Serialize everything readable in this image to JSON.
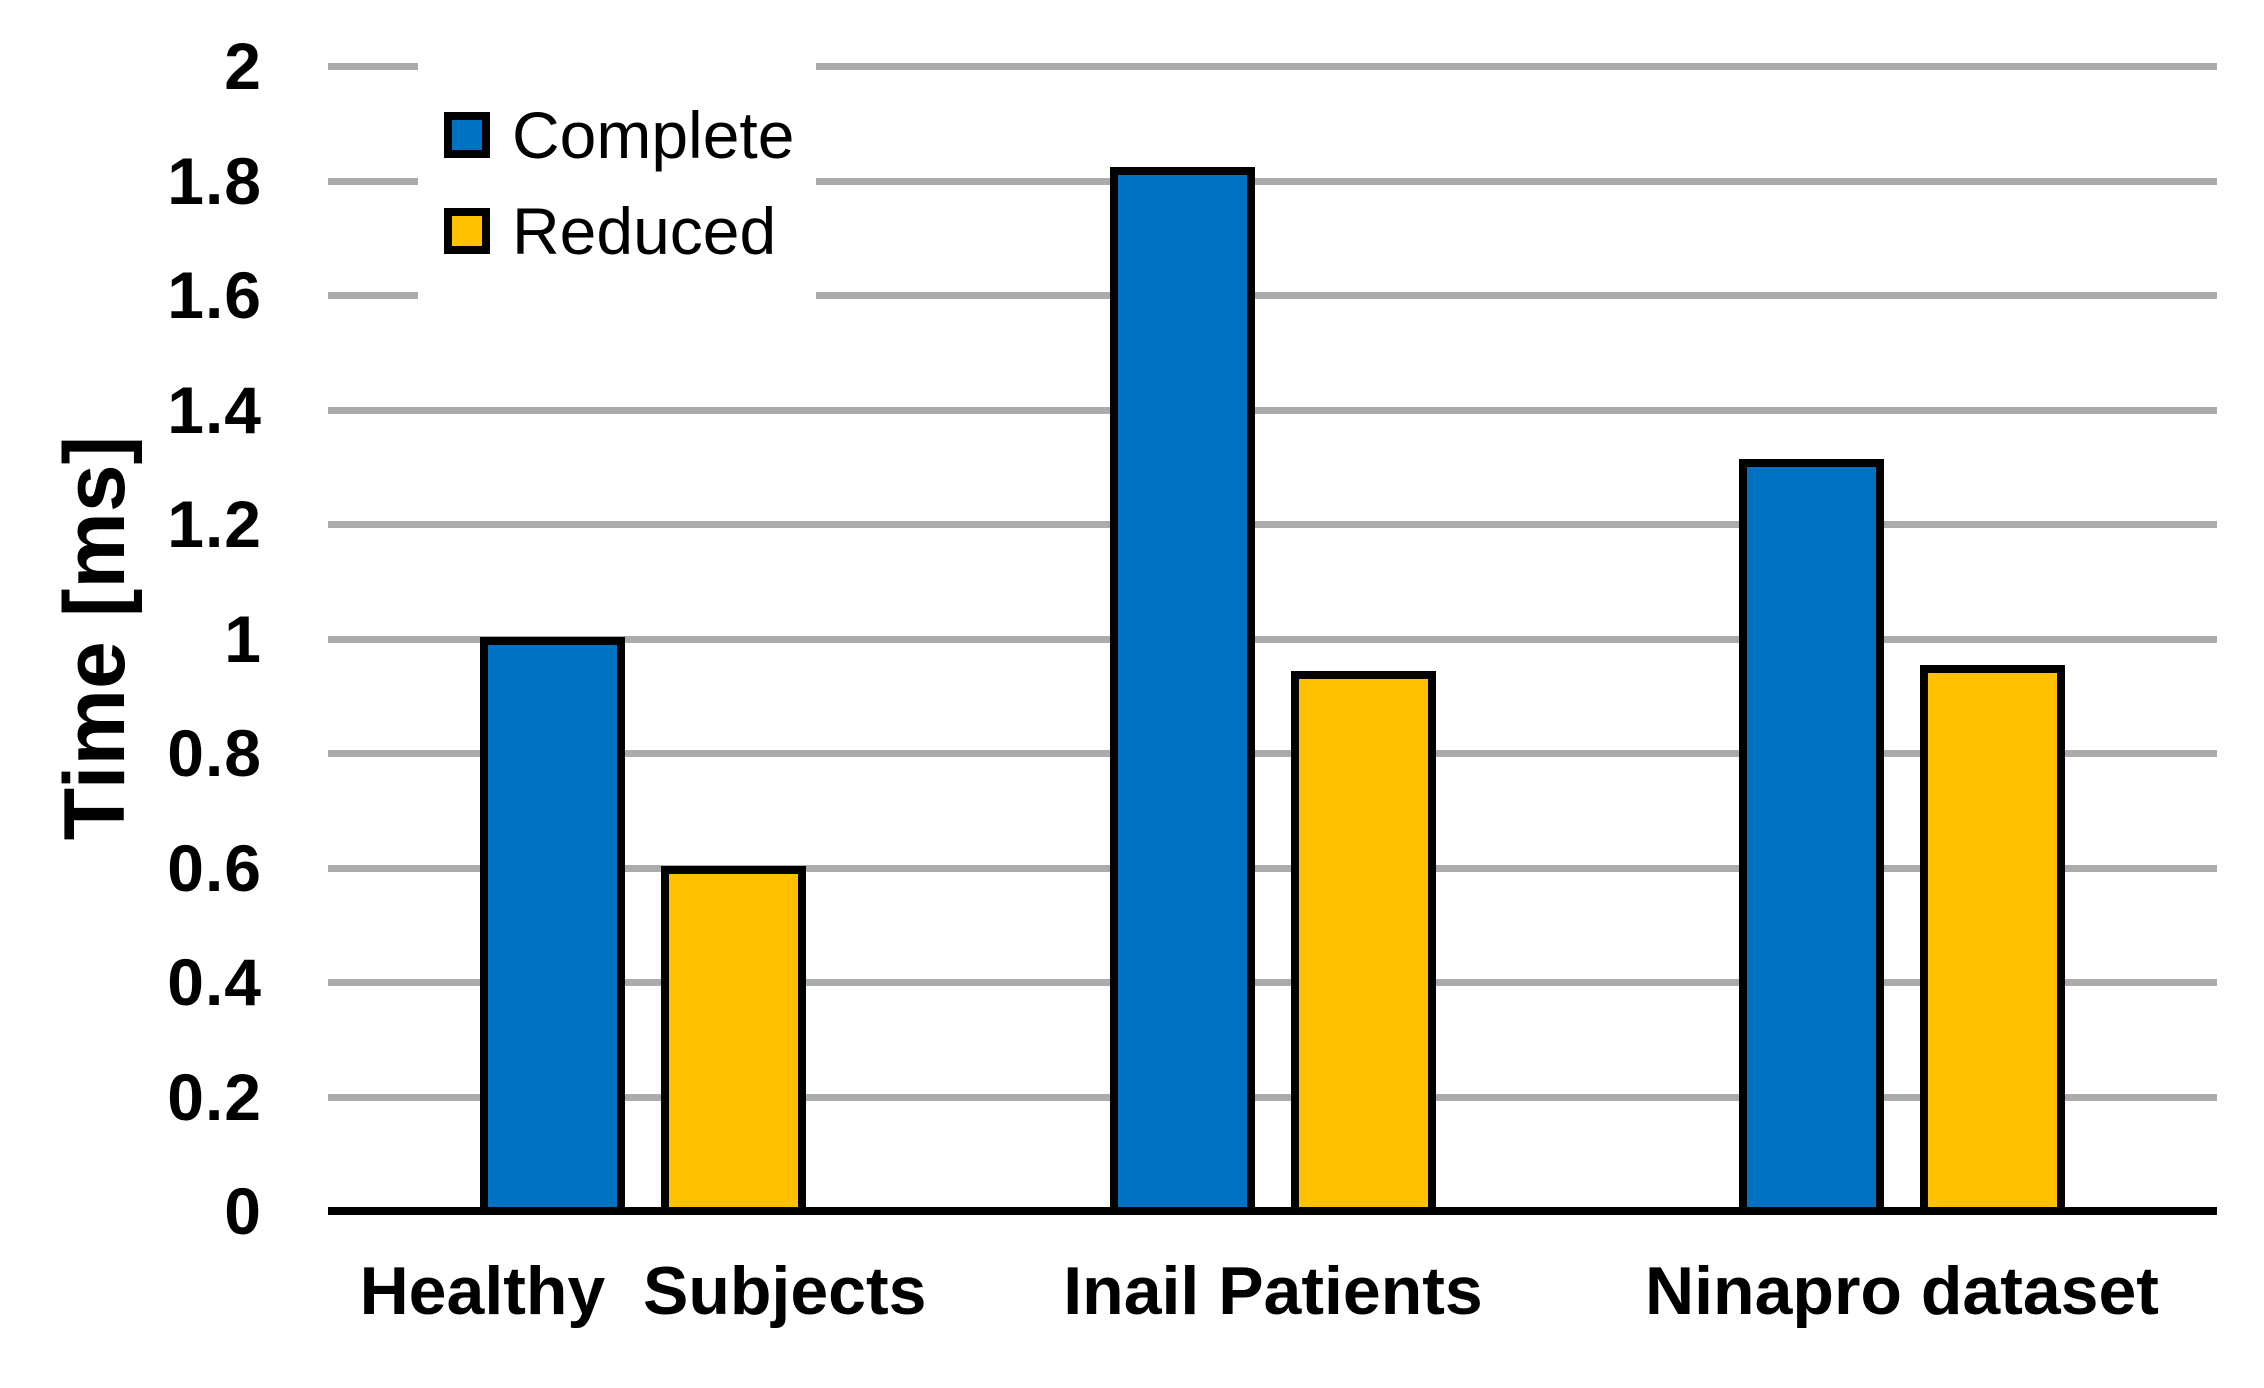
{
  "figure": {
    "background": "#FFFFFF"
  },
  "chart_data": {
    "type": "bar",
    "title": "",
    "xlabel": "",
    "ylabel": "Time [ms]",
    "categories": [
      "Healthy  Subjects",
      "Inail Patients",
      "Ninapro dataset"
    ],
    "series": [
      {
        "name": "Complete",
        "color": "#0072C2",
        "values": [
          1.01,
          1.83,
          1.32
        ]
      },
      {
        "name": "Reduced",
        "color": "#FFC000",
        "values": [
          0.61,
          0.95,
          0.96
        ]
      }
    ],
    "ylim": [
      0,
      2
    ],
    "ytick_step": 0.2,
    "yticks": [
      "2",
      "1.8",
      "1.6",
      "1.4",
      "1.2",
      "1",
      "0.8",
      "0.6",
      "0.4",
      "0.2",
      "0"
    ],
    "grid": true,
    "gridline_color": "#ABABAB",
    "axis_color": "#000000",
    "bar_border_color": "#000000",
    "legend_position": "upper-left-inside",
    "legend_entries": [
      "Complete",
      "Reduced"
    ]
  }
}
